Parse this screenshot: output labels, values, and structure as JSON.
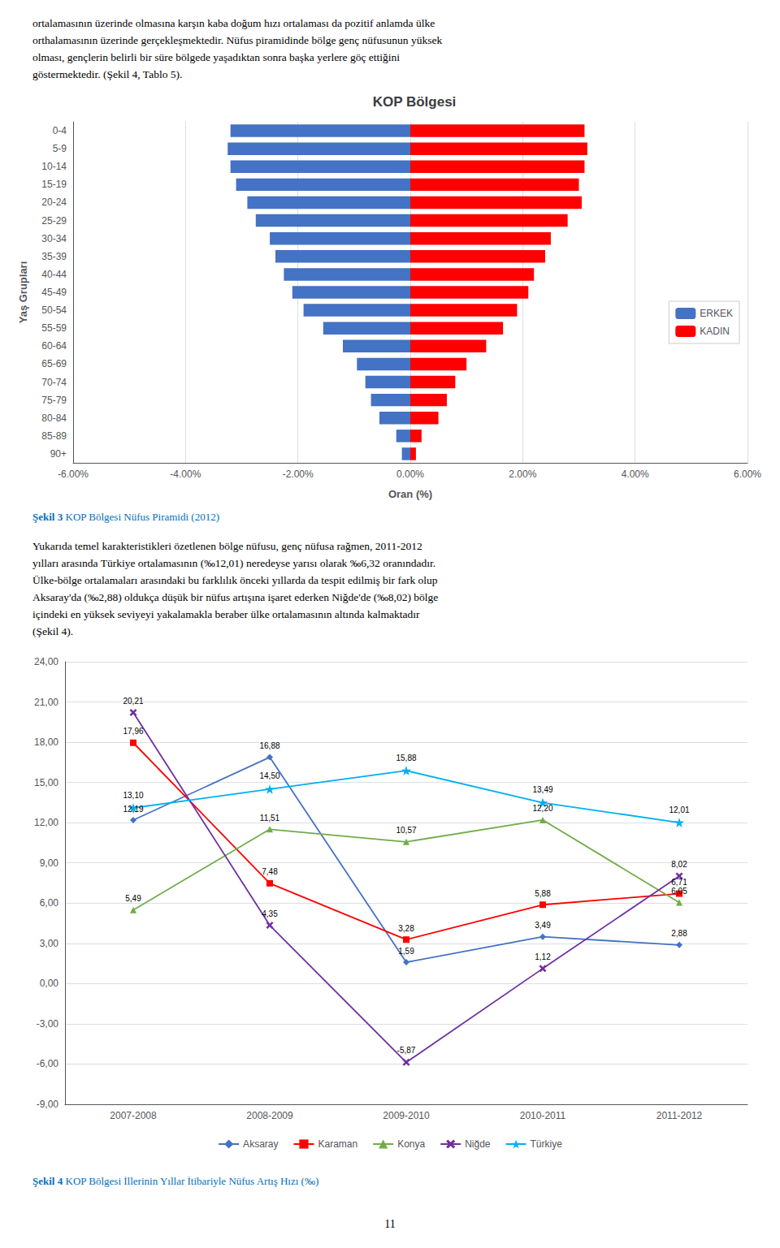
{
  "text_top": "ortalamasının üzerinde olmasına karşın kaba doğum hızı ortalaması da pozitif anlamda ülke\northalamasının üzerinde gerçekleşmektedir. Nüfus piramidinde bölge genç nüfusunun yüksek\nolması, gençlerin belirli bir süre bölgede yaşadıktan sonra başka yerlere göç ettiğini\ngöstermektedir. (Şekil 4, Tablo 5).",
  "text_middle": "Yukarıda temel karakteristikleri özetlenen bölge nüfusu, genç nüfusa rağmen, 2011-2012\nyılları arasında Türkiye ortalamasının (‰12,01) neredeyse yarısı olarak ‰6,32 oranındadır.\nÜlke-bölge ortalamaları arasındaki bu farklılık önceki yıllarda da tespit edilmiş bir fark olup\nAksaray'da (‰2,88) oldukça düşük bir nüfus artışına işaret ederken Niğde'de (‰8,02) bölge\niçindeki en yüksek seviyeyi yakalamakla beraber ülke ortalamasının altında kalmaktadır\n(Şekil 4).",
  "page_number": "11",
  "chart_data": [
    {
      "type": "bar",
      "orientation": "horizontal",
      "title": "KOP Bölgesi",
      "x_label": "Oran (%)",
      "y_label": "Yaş Grupları",
      "caption": "Şekil 3 KOP Bölgesi Nüfus Piramidi (2012)",
      "categories": [
        "90+",
        "85-89",
        "80-84",
        "75-79",
        "70-74",
        "65-69",
        "60-64",
        "55-59",
        "50-54",
        "45-49",
        "40-44",
        "35-39",
        "30-34",
        "25-29",
        "20-24",
        "15-19",
        "10-14",
        "5-9",
        "0-4"
      ],
      "series": [
        {
          "name": "ERKEK",
          "color": "#4472C4",
          "values": [
            -0.15,
            -0.25,
            -0.55,
            -0.7,
            -0.8,
            -0.95,
            -1.2,
            -1.55,
            -1.9,
            -2.1,
            -2.25,
            -2.4,
            -2.5,
            -2.75,
            -2.9,
            -3.1,
            -3.2,
            -3.25,
            -3.2
          ]
        },
        {
          "name": "KADIN",
          "color": "#FF0000",
          "values": [
            0.1,
            0.2,
            0.5,
            0.65,
            0.8,
            1.0,
            1.35,
            1.65,
            1.9,
            2.1,
            2.2,
            2.4,
            2.5,
            2.8,
            3.05,
            3.0,
            3.1,
            3.15,
            3.1
          ]
        }
      ],
      "xlim": [
        -6.0,
        6.0
      ],
      "xticks": [
        {
          "value": -6.0,
          "label": "-6.00%"
        },
        {
          "value": -4.0,
          "label": "-4.00%"
        },
        {
          "value": -2.0,
          "label": "-2.00%"
        },
        {
          "value": 0.0,
          "label": "0.00%"
        },
        {
          "value": 2.0,
          "label": "2.00%"
        },
        {
          "value": 4.0,
          "label": "4.00%"
        },
        {
          "value": 6.0,
          "label": "6.00%"
        }
      ],
      "grid": true,
      "legend": "lower right"
    },
    {
      "type": "line",
      "caption": "Şekil 4 KOP Bölgesi İllerinin Yıllar İtibariyle Nüfus Artış Hızı (‰)",
      "categories": [
        "2007-2008",
        "2008-2009",
        "2009-2010",
        "2010-2011",
        "2011-2012"
      ],
      "series": [
        {
          "name": "Aksaray",
          "color": "#4472C4",
          "marker": "diamond",
          "line_style": "solid",
          "values": [
            12.19,
            16.88,
            1.59,
            3.49,
            2.88
          ],
          "value_labels": [
            "12,19",
            "16,88",
            "1,59",
            "3,49",
            "2,88"
          ]
        },
        {
          "name": "Karaman",
          "color": "#FF0000",
          "marker": "square",
          "line_style": "solid",
          "values": [
            17.96,
            7.48,
            3.28,
            5.88,
            6.71
          ],
          "value_labels": [
            "17,96",
            "7,48",
            "3,28",
            "5,88",
            "6,71"
          ]
        },
        {
          "name": "Konya",
          "color": "#70AD47",
          "marker": "triangle",
          "line_style": "solid",
          "values": [
            5.49,
            11.51,
            10.57,
            12.2,
            6.05
          ],
          "value_labels": [
            "5,49",
            "11,51",
            "10,57",
            "12,20",
            "6,05"
          ]
        },
        {
          "name": "Niğde",
          "color": "#7030A0",
          "marker": "x",
          "line_style": "solid",
          "values": [
            20.21,
            4.35,
            -5.87,
            1.12,
            8.02
          ],
          "value_labels": [
            "20,21",
            "4,35",
            "-5,87",
            "1,12",
            "8,02"
          ]
        },
        {
          "name": "Türkiye",
          "color": "#00B0F0",
          "marker": "star",
          "line_style": "solid",
          "values": [
            13.1,
            14.5,
            15.88,
            13.49,
            12.01
          ],
          "value_labels": [
            "13,10",
            "14,50",
            "15,88",
            "13,49",
            "12,01"
          ]
        }
      ],
      "ylim": [
        -9.0,
        24.0
      ],
      "yticks": [
        {
          "value": -9.0,
          "label": "-9,00"
        },
        {
          "value": -6.0,
          "label": "-6,00"
        },
        {
          "value": -3.0,
          "label": "-3,00"
        },
        {
          "value": 0.0,
          "label": "0,00"
        },
        {
          "value": 3.0,
          "label": "3,00"
        },
        {
          "value": 6.0,
          "label": "6,00"
        },
        {
          "value": 9.0,
          "label": "9,00"
        },
        {
          "value": 12.0,
          "label": "12,00"
        },
        {
          "value": 15.0,
          "label": "15,00"
        },
        {
          "value": 18.0,
          "label": "18,00"
        },
        {
          "value": 21.0,
          "label": "21,00"
        },
        {
          "value": 24.0,
          "label": "24,00"
        }
      ],
      "grid": true,
      "data_labels": true,
      "legend": "lower center"
    }
  ]
}
